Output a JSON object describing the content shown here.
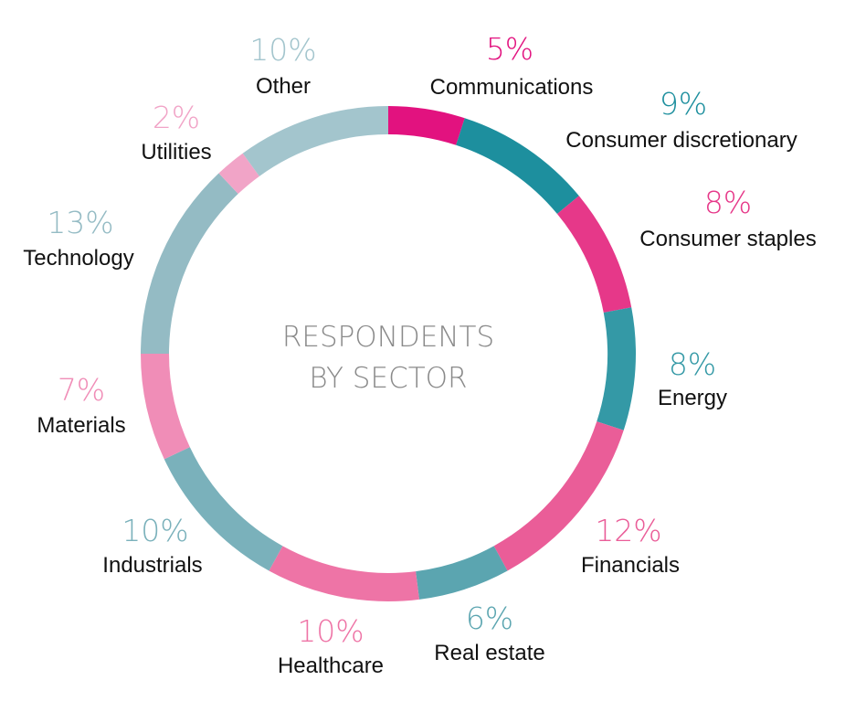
{
  "chart_data": {
    "type": "pie",
    "title": "RESPONDENTS BY SECTOR",
    "title_lines": [
      "RESPONDENTS",
      "BY SECTOR"
    ],
    "series": [
      {
        "name": "Communications",
        "value": 5,
        "value_label": "5%",
        "color": "#e2127f"
      },
      {
        "name": "Consumer discretionary",
        "value": 9,
        "value_label": "9%",
        "color": "#1d8f9e"
      },
      {
        "name": "Consumer staples",
        "value": 8,
        "value_label": "8%",
        "color": "#e63889"
      },
      {
        "name": "Energy",
        "value": 8,
        "value_label": "8%",
        "color": "#3499a6"
      },
      {
        "name": "Financials",
        "value": 12,
        "value_label": "12%",
        "color": "#ea5d98"
      },
      {
        "name": "Real estate",
        "value": 6,
        "value_label": "6%",
        "color": "#5ba5b0"
      },
      {
        "name": "Healthcare",
        "value": 10,
        "value_label": "10%",
        "color": "#ee74a6"
      },
      {
        "name": "Industrials",
        "value": 10,
        "value_label": "10%",
        "color": "#7ab1bb"
      },
      {
        "name": "Materials",
        "value": 7,
        "value_label": "7%",
        "color": "#f08db7"
      },
      {
        "name": "Technology",
        "value": 13,
        "value_label": "13%",
        "color": "#94bbc4"
      },
      {
        "name": "Utilities",
        "value": 2,
        "value_label": "2%",
        "color": "#f1a4c7"
      },
      {
        "name": "Other",
        "value": 10,
        "value_label": "10%",
        "color": "#a3c5cd"
      }
    ]
  }
}
